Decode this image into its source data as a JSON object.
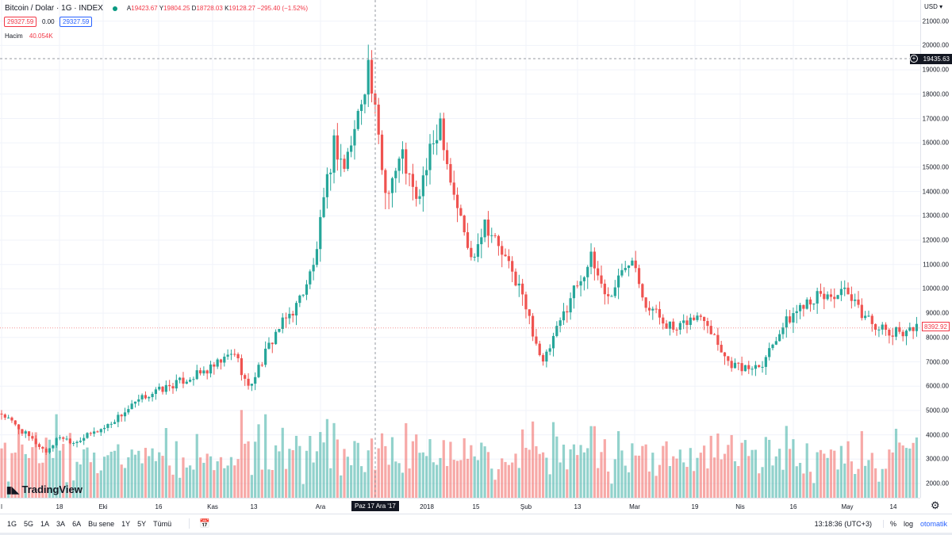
{
  "header": {
    "symbol": "Bitcoin / Dolar · 1G · INDEX",
    "open_label": "A",
    "open": "19423.67",
    "high_label": "Y",
    "high": "19804.25",
    "low_label": "D",
    "low": "18728.03",
    "close_label": "K",
    "close": "19128.27",
    "change": "−295.40 (−1.52%)",
    "bid": "29327.59",
    "spread": "0.00",
    "ask": "29327.59",
    "volume_label": "Hacim",
    "volume": "40.054K"
  },
  "currency": "USD",
  "crosshair": {
    "price": "19435.63",
    "date": "Paz 17 Ara '17"
  },
  "last_price": "8392.92",
  "logo": "TradingView",
  "x_labels": [
    "l",
    "18",
    "Eki",
    "16",
    "Kas",
    "13",
    "Ara",
    "2018",
    "15",
    "Şub",
    "13",
    "Mar",
    "19",
    "Nis",
    "16",
    "May",
    "14"
  ],
  "toolbar": {
    "ranges": [
      "1G",
      "5G",
      "1A",
      "3A",
      "6A",
      "Bu sene",
      "1Y",
      "5Y",
      "Tümü"
    ],
    "time": "13:18:36 (UTC+3)",
    "percent": "%",
    "log": "log",
    "auto": "otomatik"
  },
  "colors": {
    "up": "#26a69a",
    "down": "#ef5350",
    "auto": "#2962ff"
  },
  "chart_data": {
    "type": "candlestick",
    "y_range": [
      1500,
      21500
    ],
    "y_ticks": [
      2000,
      3000,
      4000,
      5000,
      6000,
      7000,
      8000,
      9000,
      10000,
      11000,
      12000,
      13000,
      14000,
      15000,
      16000,
      17000,
      18000,
      19000,
      20000,
      21000
    ],
    "x_range": [
      "2017-09-01",
      "2018-05-26"
    ],
    "approx_closes": [
      [
        "2017-09-01",
        4870
      ],
      [
        "2017-09-14",
        3300
      ],
      [
        "2017-09-18",
        3950
      ],
      [
        "2017-09-22",
        3700
      ],
      [
        "2017-10-01",
        4300
      ],
      [
        "2017-10-13",
        5600
      ],
      [
        "2017-10-20",
        6000
      ],
      [
        "2017-11-01",
        6700
      ],
      [
        "2017-11-08",
        7400
      ],
      [
        "2017-11-12",
        5900
      ],
      [
        "2017-11-20",
        8200
      ],
      [
        "2017-11-26",
        9300
      ],
      [
        "2017-12-01",
        10900
      ],
      [
        "2017-12-07",
        16000
      ],
      [
        "2017-12-10",
        15000
      ],
      [
        "2017-12-13",
        16500
      ],
      [
        "2017-12-17",
        19200
      ],
      [
        "2017-12-22",
        14000
      ],
      [
        "2017-12-27",
        15500
      ],
      [
        "2017-12-31",
        13500
      ],
      [
        "2018-01-07",
        17000
      ],
      [
        "2018-01-10",
        14500
      ],
      [
        "2018-01-16",
        11200
      ],
      [
        "2018-01-20",
        12800
      ],
      [
        "2018-01-30",
        10100
      ],
      [
        "2018-02-06",
        6900
      ],
      [
        "2018-02-15",
        10000
      ],
      [
        "2018-02-20",
        11200
      ],
      [
        "2018-02-25",
        9600
      ],
      [
        "2018-03-04",
        11500
      ],
      [
        "2018-03-08",
        9400
      ],
      [
        "2018-03-17",
        8200
      ],
      [
        "2018-03-20",
        8700
      ],
      [
        "2018-03-25",
        8900
      ],
      [
        "2018-04-01",
        7000
      ],
      [
        "2018-04-06",
        6700
      ],
      [
        "2018-04-11",
        7000
      ],
      [
        "2018-04-16",
        8300
      ],
      [
        "2018-04-24",
        9600
      ],
      [
        "2018-05-05",
        9800
      ],
      [
        "2018-05-10",
        9000
      ],
      [
        "2018-05-18",
        8100
      ],
      [
        "2018-05-24",
        8392
      ]
    ]
  }
}
